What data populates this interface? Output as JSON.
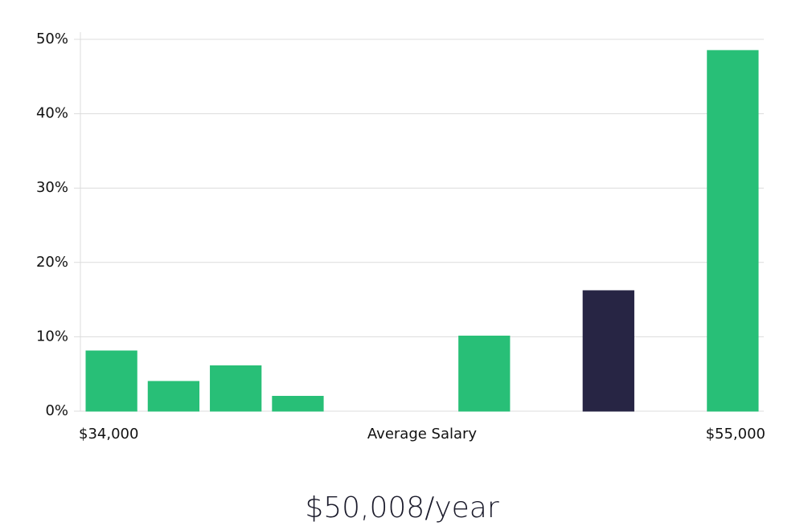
{
  "chart_data": {
    "type": "bar",
    "categories": [
      null,
      null,
      null,
      null,
      null,
      null,
      null,
      null,
      null,
      null,
      null
    ],
    "values": [
      8.1,
      4.0,
      6.1,
      2.0,
      0,
      0,
      10.1,
      0,
      16.2,
      0,
      48.5
    ],
    "colors": [
      "#28bf77",
      "#28bf77",
      "#28bf77",
      "#28bf77",
      "#28bf77",
      "#28bf77",
      "#28bf77",
      "#28bf77",
      "#272544",
      "#28bf77",
      "#28bf77"
    ],
    "ylim": [
      0,
      50
    ],
    "yticks": [
      {
        "value": 0,
        "label": "0%"
      },
      {
        "value": 10,
        "label": "10%"
      },
      {
        "value": 20,
        "label": "20%"
      },
      {
        "value": 30,
        "label": "30%"
      },
      {
        "value": 40,
        "label": "40%"
      },
      {
        "value": 50,
        "label": "50%"
      }
    ],
    "grid": true,
    "x_min_label": "$34,000",
    "xlabel": "Average Salary",
    "x_max_label": "$55,000",
    "caption": "$50,008/year"
  }
}
